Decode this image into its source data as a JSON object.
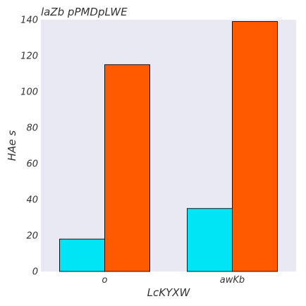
{
  "chart_data": {
    "type": "bar",
    "title": "laZb pPMDpLWE",
    "xlabel": "LcKYXW",
    "ylabel": "HAe s",
    "categories": [
      "o",
      "awKb"
    ],
    "series": [
      {
        "values": [
          18,
          35
        ],
        "color": "#00e5f5"
      },
      {
        "values": [
          115,
          139
        ],
        "color": "#ff5a00"
      }
    ],
    "ylim": [
      0,
      140
    ],
    "yticks": [
      0,
      20,
      40,
      60,
      80,
      100,
      120,
      140
    ],
    "grid": false,
    "legend": "none",
    "background_color": "#e9e9f3",
    "edge_color": "#000000"
  }
}
